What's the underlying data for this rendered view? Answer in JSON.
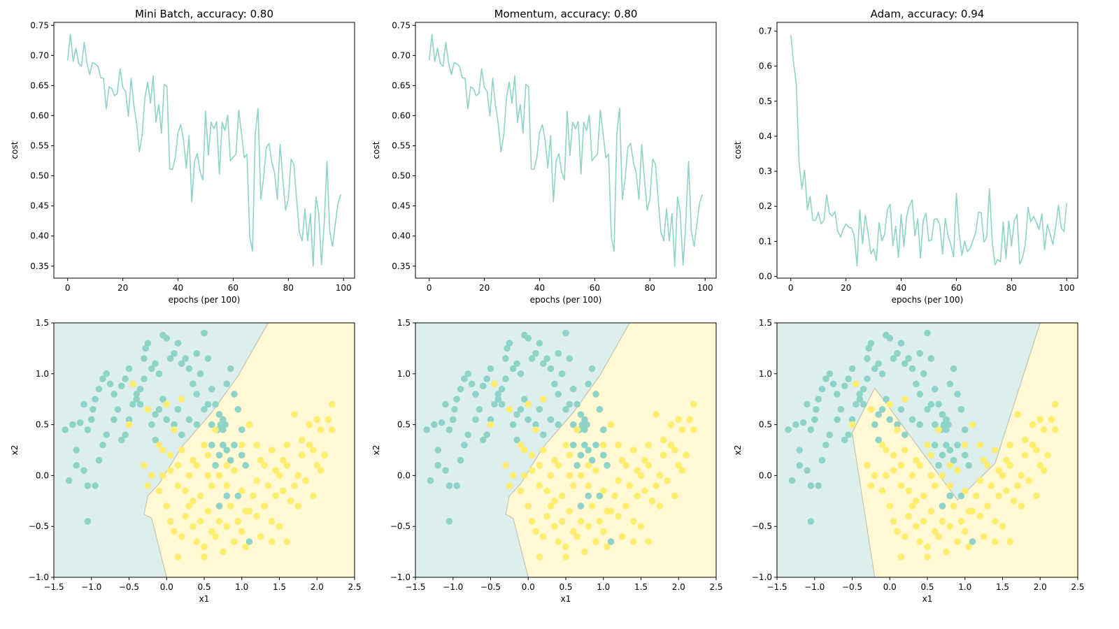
{
  "colors": {
    "class0": "#8dd3c7",
    "class1": "#ffed6f",
    "region0": "#dcefec",
    "region1": "#fff8d2",
    "line": "#8dd3c7"
  },
  "chart_data": [
    {
      "type": "line",
      "title": "Mini Batch, accuracy: 0.80",
      "xlabel": "epochs (per 100)",
      "ylabel": "cost",
      "xlim": [
        -5,
        104
      ],
      "ylim": [
        0.33,
        0.755
      ],
      "xticks": [
        0,
        20,
        40,
        60,
        80,
        100
      ],
      "yticks": [
        0.35,
        0.4,
        0.45,
        0.5,
        0.55,
        0.6,
        0.65,
        0.7,
        0.75
      ],
      "ytick_decimals": 2,
      "y": [
        0.692,
        0.735,
        0.69,
        0.712,
        0.687,
        0.682,
        0.722,
        0.688,
        0.668,
        0.688,
        0.686,
        0.682,
        0.663,
        0.662,
        0.611,
        0.648,
        0.645,
        0.633,
        0.637,
        0.678,
        0.647,
        0.64,
        0.599,
        0.662,
        0.617,
        0.587,
        0.54,
        0.567,
        0.629,
        0.656,
        0.621,
        0.666,
        0.589,
        0.619,
        0.571,
        0.652,
        0.648,
        0.511,
        0.511,
        0.53,
        0.572,
        0.585,
        0.56,
        0.513,
        0.567,
        0.457,
        0.525,
        0.537,
        0.507,
        0.493,
        0.607,
        0.534,
        0.589,
        0.578,
        0.59,
        0.503,
        0.589,
        0.575,
        0.601,
        0.525,
        0.531,
        0.536,
        0.609,
        0.571,
        0.53,
        0.536,
        0.398,
        0.375,
        0.57,
        0.612,
        0.461,
        0.496,
        0.547,
        0.554,
        0.523,
        0.505,
        0.461,
        0.552,
        0.495,
        0.443,
        0.462,
        0.528,
        0.519,
        0.46,
        0.406,
        0.392,
        0.445,
        0.392,
        0.437,
        0.35,
        0.465,
        0.438,
        0.352,
        0.422,
        0.524,
        0.408,
        0.383,
        0.42,
        0.455,
        0.469
      ]
    },
    {
      "type": "line",
      "title": "Momentum, accuracy: 0.80",
      "xlabel": "epochs (per 100)",
      "ylabel": "cost",
      "xlim": [
        -5,
        104
      ],
      "ylim": [
        0.33,
        0.755
      ],
      "xticks": [
        0,
        20,
        40,
        60,
        80,
        100
      ],
      "yticks": [
        0.35,
        0.4,
        0.45,
        0.5,
        0.55,
        0.6,
        0.65,
        0.7,
        0.75
      ],
      "ytick_decimals": 2,
      "y": [
        0.692,
        0.735,
        0.69,
        0.712,
        0.687,
        0.682,
        0.722,
        0.688,
        0.668,
        0.688,
        0.686,
        0.682,
        0.663,
        0.662,
        0.611,
        0.648,
        0.645,
        0.633,
        0.637,
        0.678,
        0.647,
        0.64,
        0.599,
        0.662,
        0.617,
        0.587,
        0.54,
        0.567,
        0.629,
        0.656,
        0.621,
        0.666,
        0.589,
        0.619,
        0.571,
        0.652,
        0.648,
        0.511,
        0.511,
        0.53,
        0.572,
        0.585,
        0.56,
        0.513,
        0.567,
        0.457,
        0.525,
        0.537,
        0.507,
        0.493,
        0.607,
        0.534,
        0.589,
        0.578,
        0.59,
        0.503,
        0.589,
        0.575,
        0.601,
        0.525,
        0.531,
        0.536,
        0.609,
        0.571,
        0.53,
        0.536,
        0.398,
        0.375,
        0.57,
        0.612,
        0.461,
        0.496,
        0.547,
        0.554,
        0.523,
        0.505,
        0.461,
        0.552,
        0.495,
        0.443,
        0.462,
        0.528,
        0.519,
        0.46,
        0.406,
        0.392,
        0.445,
        0.392,
        0.437,
        0.35,
        0.465,
        0.438,
        0.352,
        0.422,
        0.524,
        0.408,
        0.383,
        0.42,
        0.455,
        0.469
      ]
    },
    {
      "type": "line",
      "title": "Adam, accuracy: 0.94",
      "xlabel": "epochs (per 100)",
      "ylabel": "cost",
      "xlim": [
        -5,
        104
      ],
      "ylim": [
        -0.005,
        0.725
      ],
      "xticks": [
        0,
        20,
        40,
        60,
        80,
        100
      ],
      "yticks": [
        0.0,
        0.1,
        0.2,
        0.3,
        0.4,
        0.5,
        0.6,
        0.7
      ],
      "ytick_decimals": 1,
      "y": [
        0.69,
        0.61,
        0.548,
        0.325,
        0.25,
        0.303,
        0.19,
        0.228,
        0.16,
        0.16,
        0.183,
        0.15,
        0.16,
        0.232,
        0.18,
        0.172,
        0.185,
        0.13,
        0.112,
        0.134,
        0.15,
        0.14,
        0.138,
        0.117,
        0.03,
        0.19,
        0.093,
        0.175,
        0.124,
        0.065,
        0.078,
        0.045,
        0.154,
        0.102,
        0.12,
        0.19,
        0.206,
        0.087,
        0.143,
        0.054,
        0.177,
        0.085,
        0.172,
        0.202,
        0.218,
        0.116,
        0.164,
        0.052,
        0.16,
        0.18,
        0.101,
        0.104,
        0.163,
        0.165,
        0.146,
        0.064,
        0.166,
        0.116,
        0.091,
        0.056,
        0.237,
        0.125,
        0.06,
        0.101,
        0.071,
        0.08,
        0.102,
        0.125,
        0.183,
        0.182,
        0.098,
        0.112,
        0.251,
        0.1,
        0.033,
        0.048,
        0.042,
        0.155,
        0.051,
        0.158,
        0.087,
        0.158,
        0.176,
        0.035,
        0.054,
        0.091,
        0.197,
        0.156,
        0.171,
        0.155,
        0.134,
        0.178,
        0.076,
        0.148,
        0.12,
        0.091,
        0.142,
        0.203,
        0.139,
        0.128,
        0.209
      ]
    },
    {
      "type": "scatter",
      "title": "",
      "xlabel": "x1",
      "ylabel": "x2",
      "xlim": [
        -1.5,
        2.5
      ],
      "ylim": [
        -1.0,
        1.5
      ],
      "xticks": [
        -1.5,
        -1.0,
        -0.5,
        0.0,
        0.5,
        1.0,
        1.5,
        2.0,
        2.5
      ],
      "yticks": [
        -1.0,
        -0.5,
        0.0,
        0.5,
        1.0,
        1.5
      ],
      "ytick_decimals": 1,
      "boundary": [
        [
          0.0,
          -1.0
        ],
        [
          -0.2,
          -0.42
        ],
        [
          -0.3,
          -0.38
        ],
        [
          -0.25,
          -0.2
        ],
        [
          -0.1,
          -0.08
        ],
        [
          0.2,
          0.28
        ],
        [
          0.6,
          0.62
        ],
        [
          0.95,
          0.98
        ],
        [
          1.35,
          1.5
        ]
      ],
      "boundary_left_class": 0
    },
    {
      "type": "scatter",
      "title": "",
      "xlabel": "x1",
      "ylabel": "x2",
      "xlim": [
        -1.5,
        2.5
      ],
      "ylim": [
        -1.0,
        1.5
      ],
      "xticks": [
        -1.5,
        -1.0,
        -0.5,
        0.0,
        0.5,
        1.0,
        1.5,
        2.0,
        2.5
      ],
      "yticks": [
        -1.0,
        -0.5,
        0.0,
        0.5,
        1.0,
        1.5
      ],
      "ytick_decimals": 1,
      "boundary": [
        [
          0.0,
          -1.0
        ],
        [
          -0.2,
          -0.42
        ],
        [
          -0.3,
          -0.38
        ],
        [
          -0.25,
          -0.2
        ],
        [
          -0.1,
          -0.08
        ],
        [
          0.2,
          0.28
        ],
        [
          0.6,
          0.62
        ],
        [
          0.95,
          0.98
        ],
        [
          1.35,
          1.5
        ]
      ],
      "boundary_left_class": 0
    },
    {
      "type": "scatter",
      "title": "",
      "xlabel": "x1",
      "ylabel": "x2",
      "xlim": [
        -1.5,
        2.5
      ],
      "ylim": [
        -1.0,
        1.5
      ],
      "xticks": [
        -1.5,
        -1.0,
        -0.5,
        0.0,
        0.5,
        1.0,
        1.5,
        2.0,
        2.5
      ],
      "yticks": [
        -1.0,
        -0.5,
        0.0,
        0.5,
        1.0,
        1.5
      ],
      "ytick_decimals": 1,
      "boundary": [
        [
          -0.2,
          -1.0
        ],
        [
          -0.5,
          0.42
        ],
        [
          -0.2,
          0.86
        ],
        [
          0.9,
          -0.24
        ],
        [
          1.4,
          0.12
        ],
        [
          2.0,
          1.5
        ]
      ],
      "boundary_left_class": 0
    }
  ],
  "scatter_points": {
    "class0": [
      [
        -1.35,
        0.45
      ],
      [
        -1.3,
        -0.05
      ],
      [
        -1.25,
        0.5
      ],
      [
        -1.15,
        0.52
      ],
      [
        -1.1,
        0.7
      ],
      [
        -1.05,
        0.45
      ],
      [
        -1.0,
        0.55
      ],
      [
        -0.98,
        0.65
      ],
      [
        -0.95,
        0.75
      ],
      [
        -0.9,
        0.85
      ],
      [
        -0.85,
        0.95
      ],
      [
        -0.8,
        1.0
      ],
      [
        -0.75,
        0.9
      ],
      [
        -0.7,
        0.8
      ],
      [
        -0.6,
        0.88
      ],
      [
        -0.55,
        0.95
      ],
      [
        -0.5,
        1.05
      ],
      [
        -0.45,
        0.9
      ],
      [
        -0.4,
        0.8
      ],
      [
        -0.35,
        0.7
      ],
      [
        -0.3,
        1.15
      ],
      [
        -0.28,
        1.25
      ],
      [
        -0.25,
        1.3
      ],
      [
        -0.2,
        1.05
      ],
      [
        -0.15,
        1.1
      ],
      [
        -0.1,
        1.0
      ],
      [
        -0.05,
        1.38
      ],
      [
        0.0,
        1.35
      ],
      [
        0.05,
        1.15
      ],
      [
        0.1,
        1.2
      ],
      [
        0.15,
        1.3
      ],
      [
        0.2,
        1.1
      ],
      [
        0.25,
        1.15
      ],
      [
        0.3,
        1.05
      ],
      [
        0.35,
        0.9
      ],
      [
        0.4,
        1.2
      ],
      [
        0.45,
        1.0
      ],
      [
        0.5,
        1.4
      ],
      [
        0.55,
        1.15
      ],
      [
        0.6,
        0.85
      ],
      [
        0.65,
        0.7
      ],
      [
        0.7,
        0.6
      ],
      [
        0.75,
        0.55
      ],
      [
        0.8,
        0.9
      ],
      [
        0.85,
        1.05
      ],
      [
        0.9,
        0.8
      ],
      [
        0.95,
        0.65
      ],
      [
        1.0,
        0.45
      ],
      [
        -1.2,
        0.1
      ],
      [
        -1.1,
        0.05
      ],
      [
        -1.05,
        -0.1
      ],
      [
        -0.95,
        -0.1
      ],
      [
        -0.9,
        0.15
      ],
      [
        -0.85,
        0.3
      ],
      [
        -0.8,
        0.4
      ],
      [
        -0.7,
        0.55
      ],
      [
        -0.65,
        0.65
      ],
      [
        -0.6,
        0.35
      ],
      [
        -0.55,
        0.4
      ],
      [
        -0.5,
        0.55
      ],
      [
        -0.45,
        0.7
      ],
      [
        -0.4,
        0.75
      ],
      [
        -0.35,
        0.85
      ],
      [
        -0.2,
        0.5
      ],
      [
        -0.15,
        0.6
      ],
      [
        -0.1,
        0.65
      ],
      [
        0.0,
        0.55
      ],
      [
        0.1,
        0.5
      ],
      [
        0.15,
        0.65
      ],
      [
        0.2,
        0.4
      ],
      [
        0.3,
        0.55
      ],
      [
        0.4,
        0.5
      ],
      [
        0.5,
        0.65
      ],
      [
        0.55,
        0.7
      ],
      [
        0.6,
        0.3
      ],
      [
        0.65,
        0.1
      ],
      [
        0.7,
        0.2
      ],
      [
        0.75,
        0.45
      ],
      [
        0.8,
        0.25
      ],
      [
        0.85,
        0.15
      ],
      [
        0.9,
        0.3
      ],
      [
        1.0,
        0.2
      ],
      [
        1.05,
        0.1
      ],
      [
        0.7,
        -0.3
      ],
      [
        0.8,
        -0.2
      ],
      [
        0.95,
        -0.2
      ],
      [
        1.1,
        -0.65
      ],
      [
        -1.05,
        -0.45
      ],
      [
        -1.2,
        0.25
      ],
      [
        -0.3,
        0.95
      ],
      [
        0.6,
        0.5
      ],
      [
        0.68,
        0.45
      ],
      [
        0.72,
        0.5
      ],
      [
        0.78,
        0.5
      ],
      [
        0.75,
        0.3
      ],
      [
        0.4,
        0.8
      ],
      [
        -0.15,
        0.35
      ],
      [
        -0.05,
        0.75
      ]
    ],
    "class1": [
      [
        -0.3,
        0.1
      ],
      [
        -0.25,
        -0.1
      ],
      [
        -0.2,
        0.0
      ],
      [
        -0.1,
        -0.15
      ],
      [
        0.0,
        -0.3
      ],
      [
        0.05,
        -0.45
      ],
      [
        0.1,
        -0.55
      ],
      [
        0.15,
        -0.8
      ],
      [
        0.2,
        -0.6
      ],
      [
        0.25,
        -0.4
      ],
      [
        0.3,
        -0.3
      ],
      [
        0.35,
        -0.5
      ],
      [
        0.4,
        -0.65
      ],
      [
        0.45,
        -0.45
      ],
      [
        0.5,
        -0.7
      ],
      [
        0.55,
        -0.35
      ],
      [
        0.6,
        -0.55
      ],
      [
        0.65,
        -0.6
      ],
      [
        0.7,
        -0.45
      ],
      [
        0.75,
        -0.75
      ],
      [
        0.8,
        -0.5
      ],
      [
        0.85,
        -0.3
      ],
      [
        0.9,
        -0.65
      ],
      [
        0.95,
        -0.45
      ],
      [
        1.0,
        -0.55
      ],
      [
        1.05,
        -0.7
      ],
      [
        1.1,
        -0.35
      ],
      [
        1.15,
        -0.2
      ],
      [
        1.2,
        -0.4
      ],
      [
        1.25,
        -0.6
      ],
      [
        1.3,
        -0.3
      ],
      [
        1.35,
        -0.1
      ],
      [
        1.4,
        -0.45
      ],
      [
        1.45,
        -0.2
      ],
      [
        1.5,
        -0.5
      ],
      [
        1.55,
        -0.15
      ],
      [
        1.6,
        0.1
      ],
      [
        1.65,
        -0.25
      ],
      [
        1.7,
        -0.1
      ],
      [
        1.75,
        0.0
      ],
      [
        1.8,
        0.2
      ],
      [
        1.85,
        -0.05
      ],
      [
        1.9,
        0.3
      ],
      [
        1.95,
        -0.2
      ],
      [
        2.0,
        0.1
      ],
      [
        2.05,
        0.45
      ],
      [
        2.1,
        0.2
      ],
      [
        2.15,
        0.55
      ],
      [
        2.2,
        0.7
      ],
      [
        2.2,
        0.45
      ],
      [
        0.0,
        0.7
      ],
      [
        -0.1,
        0.3
      ],
      [
        0.05,
        0.2
      ],
      [
        0.15,
        0.1
      ],
      [
        0.3,
        0.0
      ],
      [
        0.4,
        0.1
      ],
      [
        0.5,
        0.3
      ],
      [
        0.55,
        0.2
      ],
      [
        0.6,
        -0.1
      ],
      [
        0.7,
        0.0
      ],
      [
        0.8,
        -0.1
      ],
      [
        0.9,
        0.05
      ],
      [
        1.0,
        -0.15
      ],
      [
        1.1,
        0.5
      ],
      [
        1.2,
        0.3
      ],
      [
        1.3,
        0.1
      ],
      [
        1.4,
        0.25
      ],
      [
        1.5,
        0.0
      ],
      [
        1.6,
        0.3
      ],
      [
        1.7,
        0.6
      ],
      [
        1.8,
        0.35
      ],
      [
        1.9,
        0.5
      ],
      [
        2.0,
        0.55
      ],
      [
        1.95,
        0.25
      ],
      [
        2.05,
        0.05
      ],
      [
        0.45,
        -0.2
      ],
      [
        0.25,
        -0.15
      ],
      [
        0.35,
        -0.25
      ],
      [
        0.2,
        0.25
      ],
      [
        0.15,
        -0.1
      ],
      [
        0.05,
        0.05
      ],
      [
        -0.05,
        0.0
      ],
      [
        0.65,
        0.45
      ],
      [
        0.8,
        0.1
      ],
      [
        1.0,
        0.3
      ],
      [
        1.2,
        -0.05
      ],
      [
        1.45,
        0.05
      ],
      [
        1.55,
        0.15
      ],
      [
        1.75,
        -0.3
      ],
      [
        1.25,
        0.15
      ],
      [
        0.55,
        0.0
      ],
      [
        0.35,
        0.15
      ],
      [
        -0.5,
        0.5
      ],
      [
        -0.25,
        0.65
      ],
      [
        -0.45,
        0.9
      ],
      [
        0.2,
        0.75
      ],
      [
        0.5,
        -0.8
      ],
      [
        1.05,
        -0.35
      ],
      [
        1.4,
        -0.65
      ],
      [
        1.6,
        -0.65
      ],
      [
        0.1,
        0.45
      ],
      [
        -0.05,
        0.25
      ]
    ]
  }
}
